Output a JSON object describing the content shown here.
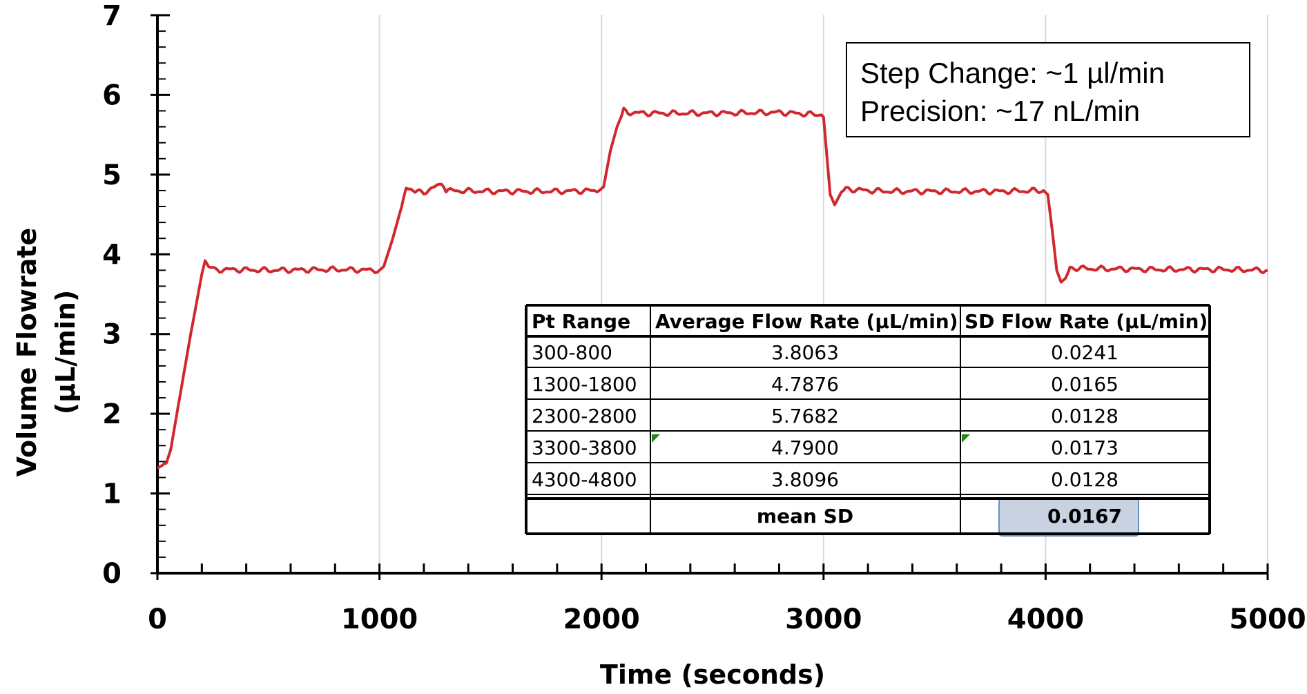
{
  "chart_data": {
    "type": "line",
    "xlabel": "Time (seconds)",
    "ylabel_lines": [
      "Volume Flowrate",
      "(µL/min)"
    ],
    "xlim": [
      0,
      5000
    ],
    "ylim": [
      0,
      7
    ],
    "x_ticks": [
      0,
      1000,
      2000,
      3000,
      4000,
      5000
    ],
    "x_tick_labels": [
      "0",
      "1000",
      "2000",
      "3000",
      "4000",
      "5000"
    ],
    "y_ticks": [
      0,
      1,
      2,
      3,
      4,
      5,
      6,
      7
    ],
    "y_tick_labels": [
      "0",
      "1",
      "2",
      "3",
      "4",
      "5",
      "6",
      "7"
    ],
    "grid": "vertical",
    "series": [
      {
        "color": "#d0282e",
        "x": [
          0,
          40,
          60,
          100,
          150,
          200,
          215,
          230,
          260,
          300,
          500,
          800,
          1000,
          1020,
          1060,
          1100,
          1120,
          1140,
          1160,
          1200,
          1280,
          1300,
          1500,
          1800,
          1990,
          2010,
          2040,
          2070,
          2100,
          2120,
          2200,
          2500,
          2800,
          2990,
          3000,
          3030,
          3050,
          3080,
          3100,
          3200,
          3300,
          3500,
          3800,
          3990,
          4010,
          4030,
          4050,
          4070,
          4090,
          4110,
          4200,
          4500,
          4800,
          5000
        ],
        "y": [
          1.3,
          1.38,
          1.55,
          2.2,
          3.0,
          3.75,
          3.92,
          3.85,
          3.8,
          3.81,
          3.8,
          3.81,
          3.8,
          3.85,
          4.2,
          4.6,
          4.85,
          4.82,
          4.78,
          4.78,
          4.88,
          4.8,
          4.79,
          4.79,
          4.8,
          4.85,
          5.3,
          5.6,
          5.8,
          5.78,
          5.77,
          5.77,
          5.78,
          5.75,
          5.72,
          4.75,
          4.62,
          4.78,
          4.82,
          4.8,
          4.79,
          4.79,
          4.79,
          4.8,
          4.75,
          4.3,
          3.8,
          3.65,
          3.7,
          3.83,
          3.82,
          3.81,
          3.81,
          3.8
        ]
      }
    ],
    "annotation": {
      "lines": [
        "Step Change: ~1 µl/min",
        "Precision: ~17 nL/min"
      ]
    },
    "table": {
      "headers": [
        "Pt Range",
        "Average Flow Rate (µL/min)",
        "SD Flow Rate (µL/min)"
      ],
      "rows": [
        [
          "300-800",
          "3.8063",
          "0.0241"
        ],
        [
          "1300-1800",
          "4.7876",
          "0.0165"
        ],
        [
          "2300-2800",
          "5.7682",
          "0.0128"
        ],
        [
          "3300-3800",
          "4.7900",
          "0.0173"
        ],
        [
          "4300-4800",
          "3.8096",
          "0.0128"
        ]
      ],
      "footer": [
        "",
        "mean SD",
        "0.0167"
      ]
    }
  }
}
